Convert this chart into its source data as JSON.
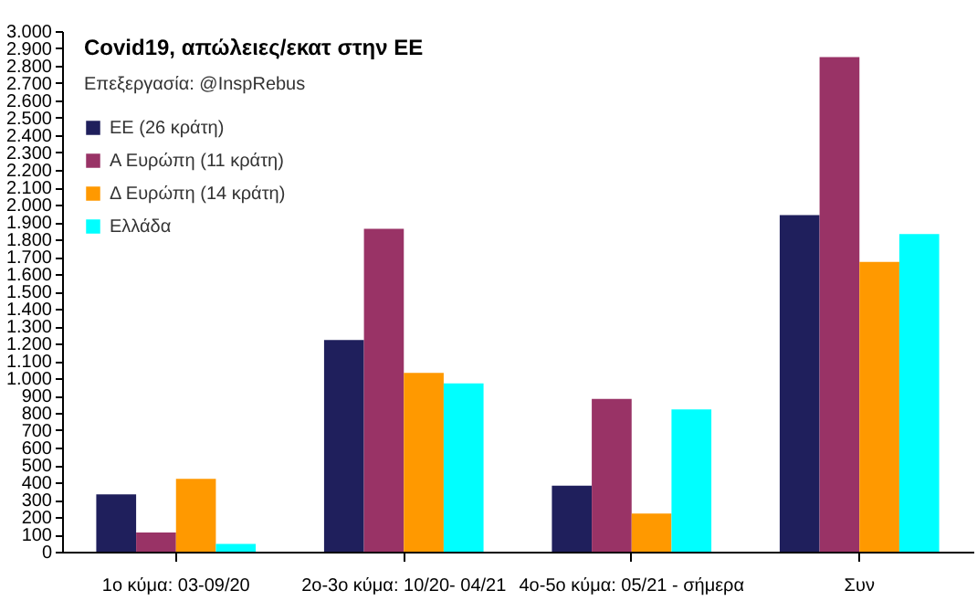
{
  "chart_data": {
    "type": "bar",
    "title": "Covid19, απώλειες/εκατ στην ΕΕ",
    "subtitle": "Επεξεργασία: @InspRebus",
    "categories": [
      "1ο κύμα: 03-09/20",
      "2ο-3ο κύμα: 10/20- 04/21",
      "4ο-5ο κύμα: 05/21 - σήμερα",
      "Συν"
    ],
    "series": [
      {
        "name": "ΕΕ (26 κράτη)",
        "color": "#1f1f5c",
        "values": [
          330,
          1220,
          380,
          1940
        ]
      },
      {
        "name": "Α Ευρώπη (11 κράτη)",
        "color": "#993366",
        "values": [
          110,
          1860,
          880,
          2850
        ]
      },
      {
        "name": "Δ Ευρώπη (14 κράτη)",
        "color": "#ff9900",
        "values": [
          420,
          1030,
          220,
          1670
        ]
      },
      {
        "name": "Ελλάδα",
        "color": "#00ffff",
        "values": [
          45,
          970,
          820,
          1830
        ]
      }
    ],
    "ylim": [
      0,
      3000
    ],
    "yticks": [
      0,
      100,
      200,
      300,
      400,
      500,
      600,
      700,
      800,
      900,
      {
        "value": 1000,
        "label": "1.000"
      },
      {
        "value": 1100,
        "label": "1.100"
      },
      {
        "value": 1200,
        "label": "1.200"
      },
      {
        "value": 1300,
        "label": "1.300"
      },
      {
        "value": 1400,
        "label": "1.400"
      },
      {
        "value": 1500,
        "label": "1.500"
      },
      {
        "value": 1600,
        "label": "1.600"
      },
      {
        "value": 1700,
        "label": "1.700"
      },
      {
        "value": 1800,
        "label": "1.800"
      },
      {
        "value": 1900,
        "label": "1.900"
      },
      {
        "value": 2000,
        "label": "2.000"
      },
      {
        "value": 2100,
        "label": "2.100"
      },
      {
        "value": 2200,
        "label": "2.200"
      },
      {
        "value": 2300,
        "label": "2.300"
      },
      {
        "value": 2400,
        "label": "2.400"
      },
      {
        "value": 2500,
        "label": "2.500"
      },
      {
        "value": 2600,
        "label": "2.600"
      },
      {
        "value": 2700,
        "label": "2.700"
      },
      {
        "value": 2800,
        "label": "2.800"
      },
      {
        "value": 2900,
        "label": "2.900"
      },
      {
        "value": 3000,
        "label": "3.000"
      }
    ],
    "grid": false,
    "legend": "top left"
  }
}
